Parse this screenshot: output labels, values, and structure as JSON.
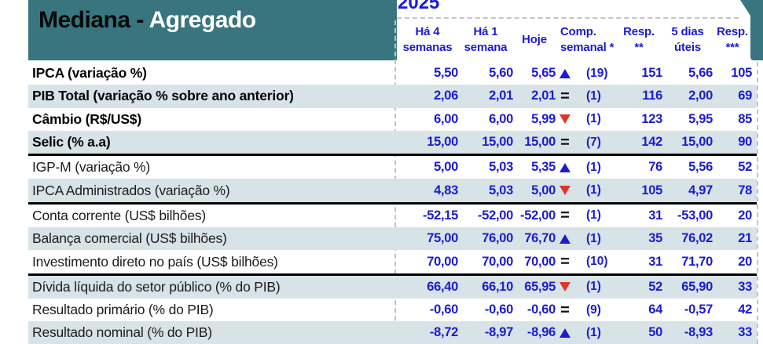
{
  "report": {
    "title_primary": "Mediana - ",
    "title_secondary": "Agregado",
    "year": "2025"
  },
  "header": {
    "columns": [
      {
        "line1": "Há 4",
        "line2": "semanas"
      },
      {
        "line1": "Há 1",
        "line2": "semana"
      },
      {
        "line1": "Hoje",
        "line2": ""
      },
      {
        "line1": "Comp.",
        "line2": "semanal *"
      },
      {
        "line1": "Resp.",
        "line2": "**"
      },
      {
        "line1": "5 dias",
        "line2": "úteis"
      },
      {
        "line1": "Resp.",
        "line2": "***"
      }
    ]
  },
  "colors": {
    "teal": "#38757f",
    "blue": "#1b1bd2",
    "red": "#e03428",
    "row_shade": "#d8e3e8"
  },
  "groups": [
    {
      "rows": [
        {
          "label": "IPCA (variação %)",
          "bold": true,
          "ha4": "5,50",
          "ha1": "5,60",
          "hoje": "5,65",
          "trend": "up",
          "count": "(19)",
          "resp": "151",
          "dias5": "5,66",
          "resp3": "105"
        },
        {
          "label": "PIB Total (variação % sobre ano anterior)",
          "bold": true,
          "ha4": "2,06",
          "ha1": "2,01",
          "hoje": "2,01",
          "trend": "eq",
          "count": "(1)",
          "resp": "116",
          "dias5": "2,00",
          "resp3": "69"
        },
        {
          "label": "Câmbio (R$/US$)",
          "bold": true,
          "ha4": "6,00",
          "ha1": "6,00",
          "hoje": "5,99",
          "trend": "down",
          "count": "(1)",
          "resp": "123",
          "dias5": "5,95",
          "resp3": "85"
        },
        {
          "label": "Selic (% a.a)",
          "bold": true,
          "ha4": "15,00",
          "ha1": "15,00",
          "hoje": "15,00",
          "trend": "eq",
          "count": "(7)",
          "resp": "142",
          "dias5": "15,00",
          "resp3": "90"
        }
      ]
    },
    {
      "rows": [
        {
          "label": "IGP-M (variação %)",
          "bold": false,
          "ha4": "5,00",
          "ha1": "5,03",
          "hoje": "5,35",
          "trend": "up",
          "count": "(1)",
          "resp": "76",
          "dias5": "5,56",
          "resp3": "52"
        },
        {
          "label": "IPCA Administrados (variação %)",
          "bold": false,
          "ha4": "4,83",
          "ha1": "5,03",
          "hoje": "5,00",
          "trend": "down",
          "count": "(1)",
          "resp": "105",
          "dias5": "4,97",
          "resp3": "78"
        }
      ]
    },
    {
      "rows": [
        {
          "label": "Conta corrente (US$ bilhões)",
          "bold": false,
          "ha4": "-52,15",
          "ha1": "-52,00",
          "hoje": "-52,00",
          "trend": "eq",
          "count": "(1)",
          "resp": "31",
          "dias5": "-53,00",
          "resp3": "20"
        },
        {
          "label": "Balança comercial (US$ bilhões)",
          "bold": false,
          "ha4": "75,00",
          "ha1": "76,00",
          "hoje": "76,70",
          "trend": "up",
          "count": "(1)",
          "resp": "35",
          "dias5": "76,02",
          "resp3": "21"
        },
        {
          "label": "Investimento direto no país (US$ bilhões)",
          "bold": false,
          "ha4": "70,00",
          "ha1": "70,00",
          "hoje": "70,00",
          "trend": "eq",
          "count": "(10)",
          "resp": "31",
          "dias5": "71,70",
          "resp3": "20"
        }
      ]
    },
    {
      "rows": [
        {
          "label": "Dívida líquida do setor público (% do PIB)",
          "bold": false,
          "ha4": "66,40",
          "ha1": "66,10",
          "hoje": "65,95",
          "trend": "down",
          "count": "(1)",
          "resp": "52",
          "dias5": "65,90",
          "resp3": "33"
        },
        {
          "label": "Resultado primário (% do PIB)",
          "bold": false,
          "ha4": "-0,60",
          "ha1": "-0,60",
          "hoje": "-0,60",
          "trend": "eq",
          "count": "(9)",
          "resp": "64",
          "dias5": "-0,57",
          "resp3": "42"
        },
        {
          "label": "Resultado nominal (% do PIB)",
          "bold": false,
          "ha4": "-8,72",
          "ha1": "-8,97",
          "hoje": "-8,96",
          "trend": "up",
          "count": "(1)",
          "resp": "50",
          "dias5": "-8,93",
          "resp3": "33"
        }
      ]
    }
  ]
}
